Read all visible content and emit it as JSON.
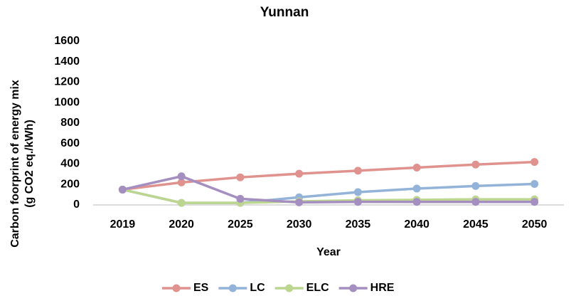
{
  "chart_data": {
    "type": "line",
    "title": "Yunnan",
    "xlabel": "Year",
    "ylabel": [
      "Carbon foorprint of energy mix",
      "(g CO2 eq./kWh)"
    ],
    "categories": [
      "2019",
      "2020",
      "2025",
      "2030",
      "2035",
      "2040",
      "2045",
      "2050"
    ],
    "series": [
      {
        "name": "ES",
        "color": "#e0928e",
        "values": [
          150,
          220,
          270,
          305,
          335,
          365,
          395,
          420
        ]
      },
      {
        "name": "LC",
        "color": "#93b3d9",
        "values": [
          150,
          20,
          20,
          75,
          125,
          160,
          185,
          205
        ]
      },
      {
        "name": "ELC",
        "color": "#bcd690",
        "values": [
          150,
          20,
          20,
          35,
          45,
          50,
          55,
          55
        ]
      },
      {
        "name": "HRE",
        "color": "#a58fc1",
        "values": [
          150,
          280,
          60,
          25,
          30,
          30,
          30,
          30
        ]
      }
    ],
    "ylim": [
      0,
      1600
    ],
    "yticks": [
      0,
      200,
      400,
      600,
      800,
      1000,
      1200,
      1400,
      1600
    ],
    "grid": false,
    "legend": "bottom"
  }
}
